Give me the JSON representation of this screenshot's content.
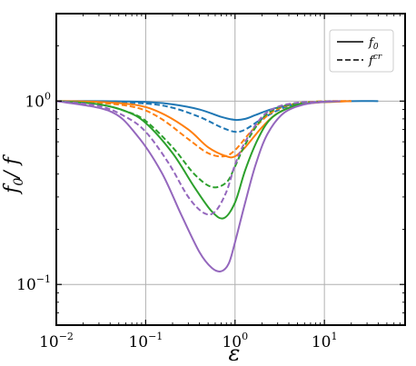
{
  "chart_data": {
    "type": "line",
    "xlabel": "ε",
    "ylabel_main": "f",
    "ylabel_sub": "0",
    "ylabel_tail": "/ f",
    "xscale": "log",
    "yscale": "log",
    "xlim": [
      0.01,
      80
    ],
    "ylim": [
      0.06,
      3.0
    ],
    "grid": true,
    "legend_position": "top-right",
    "x_ticks": [
      {
        "value": 0.01,
        "base": "10",
        "exp": "−2"
      },
      {
        "value": 0.1,
        "base": "10",
        "exp": "−1"
      },
      {
        "value": 1,
        "base": "10",
        "exp": "0"
      },
      {
        "value": 10,
        "base": "10",
        "exp": "1"
      }
    ],
    "y_ticks": [
      {
        "value": 0.1,
        "base": "10",
        "exp": "−1"
      },
      {
        "value": 1,
        "base": "10",
        "exp": "0"
      }
    ],
    "legend": [
      {
        "label_main": "f",
        "label_sup": "",
        "label_sub": "0",
        "style": "solid"
      },
      {
        "label_main": "f",
        "label_sup": "cr",
        "label_sub": "",
        "style": "dashed"
      }
    ],
    "series": [
      {
        "color": "#1f77b4",
        "style": "solid",
        "x": [
          0.01,
          0.03,
          0.1,
          0.2,
          0.4,
          0.7,
          1.0,
          1.3,
          1.7,
          2.5,
          4,
          7,
          10,
          20,
          40
        ],
        "y": [
          1.0,
          1.0,
          0.99,
          0.96,
          0.9,
          0.82,
          0.79,
          0.8,
          0.84,
          0.9,
          0.95,
          0.98,
          0.99,
          1.0,
          1.0
        ]
      },
      {
        "color": "#1f77b4",
        "style": "dashed",
        "x": [
          0.01,
          0.03,
          0.1,
          0.2,
          0.4,
          0.7,
          1.0,
          1.3,
          2.0,
          3.5,
          6,
          10,
          20
        ],
        "y": [
          1.0,
          0.99,
          0.97,
          0.92,
          0.82,
          0.72,
          0.68,
          0.7,
          0.8,
          0.92,
          0.97,
          0.99,
          1.0
        ]
      },
      {
        "color": "#ff7f0e",
        "style": "solid",
        "x": [
          0.01,
          0.03,
          0.08,
          0.15,
          0.3,
          0.5,
          0.8,
          1.0,
          1.3,
          2.0,
          3,
          5,
          8,
          12,
          20
        ],
        "y": [
          1.0,
          0.99,
          0.95,
          0.86,
          0.7,
          0.56,
          0.5,
          0.5,
          0.56,
          0.72,
          0.86,
          0.95,
          0.98,
          0.99,
          1.0
        ]
      },
      {
        "color": "#ff7f0e",
        "style": "dashed",
        "x": [
          0.01,
          0.03,
          0.08,
          0.15,
          0.3,
          0.5,
          0.75,
          1.0,
          1.5,
          2.5,
          4,
          7,
          12,
          20
        ],
        "y": [
          1.0,
          0.98,
          0.92,
          0.8,
          0.62,
          0.52,
          0.5,
          0.54,
          0.68,
          0.86,
          0.95,
          0.99,
          1.0,
          1.0
        ]
      },
      {
        "color": "#2ca02c",
        "style": "solid",
        "x": [
          0.01,
          0.03,
          0.06,
          0.1,
          0.2,
          0.35,
          0.55,
          0.75,
          1.0,
          1.3,
          1.8,
          2.5,
          4,
          6,
          10,
          15
        ],
        "y": [
          1.0,
          0.96,
          0.88,
          0.76,
          0.52,
          0.34,
          0.25,
          0.23,
          0.28,
          0.42,
          0.62,
          0.8,
          0.92,
          0.97,
          0.99,
          1.0
        ]
      },
      {
        "color": "#2ca02c",
        "style": "dashed",
        "x": [
          0.01,
          0.03,
          0.06,
          0.1,
          0.2,
          0.35,
          0.55,
          0.8,
          1.0,
          1.3,
          2.0,
          3,
          5,
          8,
          12
        ],
        "y": [
          1.0,
          0.96,
          0.88,
          0.78,
          0.56,
          0.4,
          0.34,
          0.36,
          0.44,
          0.58,
          0.8,
          0.92,
          0.97,
          0.99,
          1.0
        ]
      },
      {
        "color": "#9467bd",
        "style": "solid",
        "x": [
          0.01,
          0.04,
          0.08,
          0.15,
          0.25,
          0.4,
          0.55,
          0.7,
          0.85,
          1.0,
          1.3,
          1.7,
          2.3,
          3.5,
          6,
          10,
          15
        ],
        "y": [
          1.0,
          0.88,
          0.65,
          0.41,
          0.24,
          0.15,
          0.123,
          0.118,
          0.13,
          0.17,
          0.28,
          0.45,
          0.66,
          0.86,
          0.96,
          0.99,
          1.0
        ]
      },
      {
        "color": "#9467bd",
        "style": "dashed",
        "x": [
          0.01,
          0.03,
          0.06,
          0.1,
          0.18,
          0.3,
          0.45,
          0.6,
          0.8,
          1.0,
          1.3,
          2.0,
          3,
          5,
          8,
          12
        ],
        "y": [
          1.0,
          0.94,
          0.82,
          0.68,
          0.46,
          0.3,
          0.245,
          0.25,
          0.32,
          0.45,
          0.6,
          0.82,
          0.93,
          0.98,
          0.99,
          1.0
        ]
      }
    ]
  }
}
